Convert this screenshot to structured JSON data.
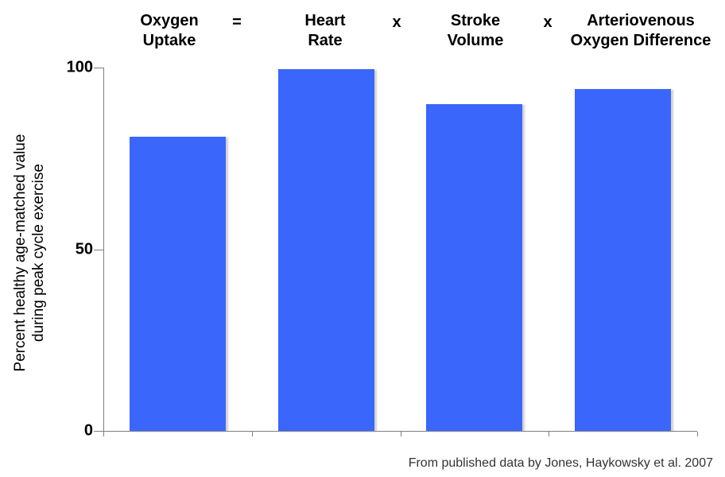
{
  "chart_data": {
    "type": "bar",
    "title": "Oxygen Uptake = Heart Rate x Stroke Volume x Arteriovenous Oxygen Difference",
    "categories": [
      "Oxygen Uptake",
      "Heart Rate",
      "Stroke Volume",
      "Arteriovenous Oxygen Difference"
    ],
    "category_label_lines": [
      [
        "Oxygen",
        "Uptake"
      ],
      [
        "Heart",
        "Rate"
      ],
      [
        "Stroke",
        "Volume"
      ],
      [
        "Arteriovenous",
        "Oxygen Difference"
      ]
    ],
    "operators": [
      "=",
      "x",
      "x"
    ],
    "values": [
      81,
      99.5,
      90,
      94
    ],
    "ylabel": "Percent healthy age-matched value during peak cycle exercise",
    "ylabel_lines": [
      "Percent healthy age-matched value",
      "during peak cycle exercise"
    ],
    "xlabel": "",
    "yticks": [
      0,
      50,
      100
    ],
    "ylim": [
      0,
      100
    ],
    "grid": false,
    "legend": null,
    "bar_color": "#3A66FB",
    "axis_color": "#808080",
    "source_note": "From published data by Jones, Haykowsky et al. 2007"
  }
}
